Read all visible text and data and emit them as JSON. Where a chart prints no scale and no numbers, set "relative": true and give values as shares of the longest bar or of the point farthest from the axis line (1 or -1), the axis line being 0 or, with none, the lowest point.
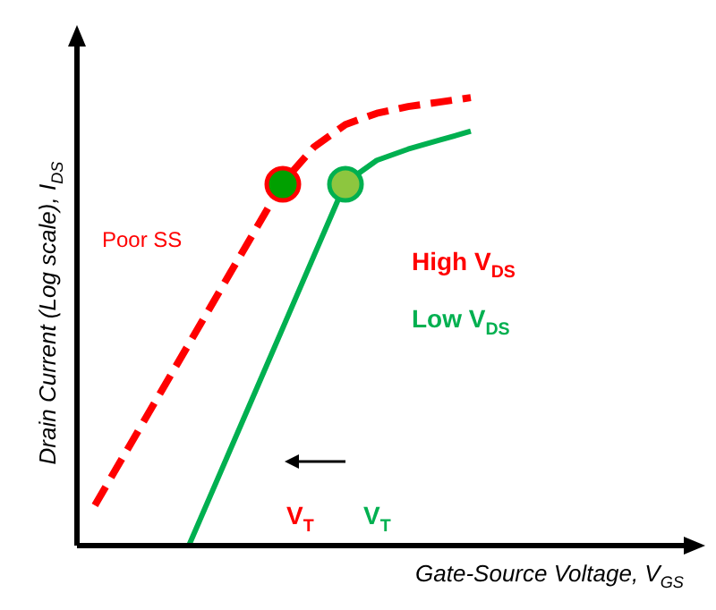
{
  "chart_data": {
    "type": "line",
    "relative": true,
    "xlabel": "Gate-Source Voltage, V$_{GS}$",
    "ylabel": "Drain Current (Log scale), I$_{DS}$",
    "categories": [
      null,
      null,
      null,
      null,
      null,
      null,
      null,
      null,
      null,
      null,
      null,
      null,
      null
    ],
    "series": [
      {
        "name": "High V$_{DS}$",
        "color": "#ff0000",
        "line_style": "dashed",
        "values": [
          0.09,
          0.21,
          0.33,
          0.45,
          0.57,
          0.69,
          0.81,
          0.89,
          0.94,
          0.965,
          0.98,
          0.99,
          1.0
        ]
      },
      {
        "name": "Low V$_{DS}$",
        "color": "#00b050",
        "line_style": "solid",
        "values": [
          null,
          null,
          null,
          0,
          0.162,
          0.324,
          0.486,
          0.648,
          0.81,
          0.86,
          0.885,
          0.905,
          0.925
        ]
      }
    ],
    "annotations": [
      "Poor SS",
      "V$_{T}$",
      "V$_{T}$"
    ],
    "marker": "none"
  }
}
